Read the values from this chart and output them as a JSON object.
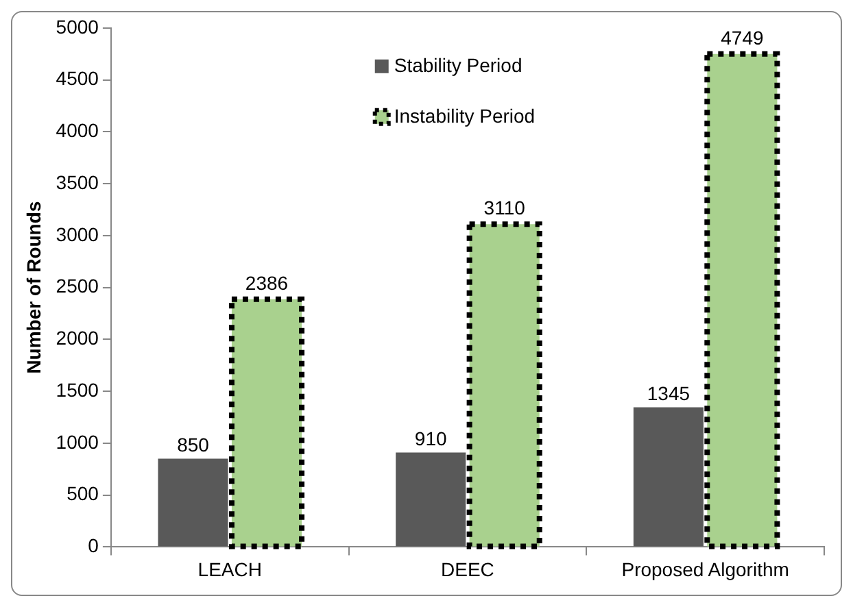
{
  "chart_data": {
    "type": "bar",
    "ylabel": "Number of Rounds",
    "categories": [
      "LEACH",
      "DEEC",
      "Proposed Algorithm"
    ],
    "series": [
      {
        "name": "Stability Period",
        "color": "#595959",
        "values": [
          850,
          910,
          1345
        ]
      },
      {
        "name": "Instability Period",
        "color": "#a9d18e",
        "values": [
          2386,
          3110,
          4749
        ]
      }
    ],
    "ylim": [
      0,
      5000
    ],
    "yticks": [
      0,
      500,
      1000,
      1500,
      2000,
      2500,
      3000,
      3500,
      4000,
      4500,
      5000
    ],
    "data_labels": true,
    "legend": "top"
  }
}
